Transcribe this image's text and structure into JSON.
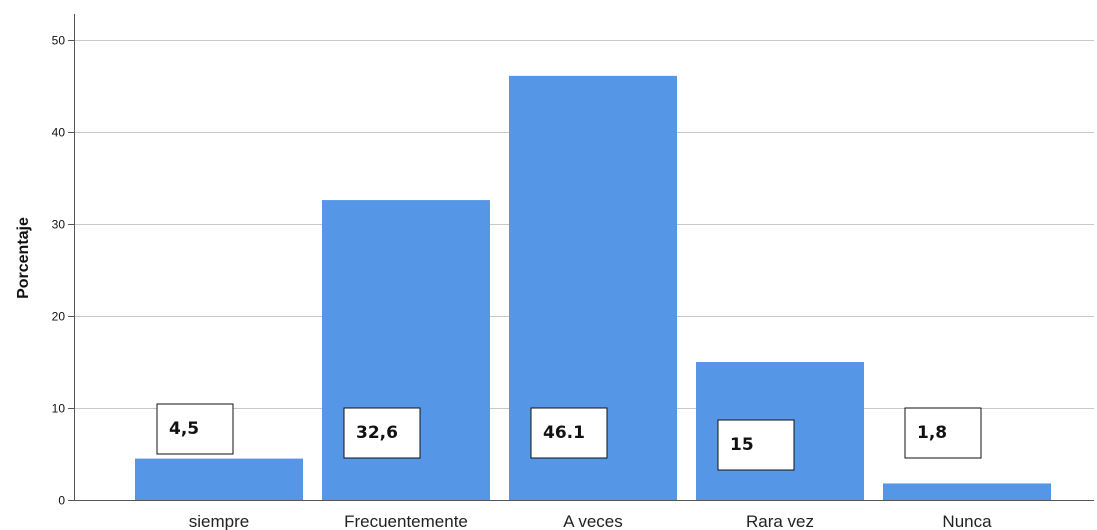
{
  "chart_data": {
    "type": "bar",
    "categories": [
      "siempre",
      "Frecuentemente",
      "A veces",
      "Rara vez",
      "Nunca"
    ],
    "values": [
      4.5,
      32.6,
      46.1,
      15,
      1.8
    ],
    "data_labels": [
      "4,5",
      "32,6",
      "46.1",
      "15",
      "1,8"
    ],
    "title": "",
    "xlabel": "",
    "ylabel": "Porcentaje",
    "ylim": [
      0,
      50
    ],
    "yticks": [
      0,
      10,
      20,
      30,
      40,
      50
    ],
    "grid": true,
    "bar_color": "#5596e6",
    "grid_color": "#c8c8c8"
  }
}
